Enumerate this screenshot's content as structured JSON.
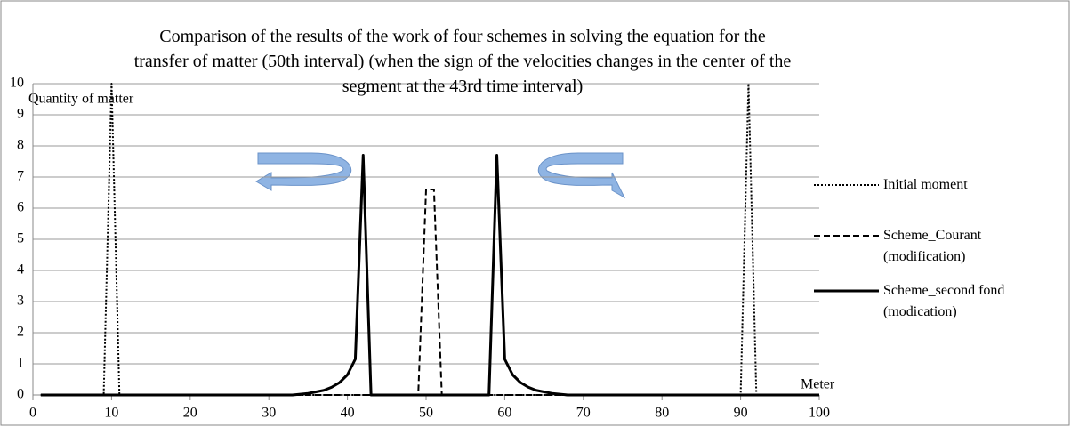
{
  "chart_data": {
    "type": "line",
    "title": "Comparison of the results of the work of four schemes in solving the equation for the transfer of matter (50th interval) (when the sign of the velocities changes in the center of the segment at the 43rd time interval)",
    "y_label": "Quantity of matter",
    "x_label": "Meter",
    "xlim": [
      0,
      100
    ],
    "xticks": [
      0,
      10,
      20,
      30,
      40,
      50,
      60,
      70,
      80,
      90,
      100
    ],
    "ylim": [
      0,
      10
    ],
    "yticks": [
      0,
      1,
      2,
      3,
      4,
      5,
      6,
      7,
      8,
      9,
      10
    ],
    "grid": true,
    "legend": "right",
    "series": [
      {
        "name": "Initial moment",
        "color": "#000000",
        "linestyle": "dotted",
        "x": [
          1,
          9,
          10,
          11,
          90,
          91,
          92,
          100
        ],
        "values": [
          0,
          0,
          10,
          0,
          0,
          10,
          0,
          0
        ]
      },
      {
        "name": "Scheme_Courant (modification)",
        "color": "#000000",
        "linestyle": "dashed",
        "x": [
          1,
          49,
          50,
          51,
          52,
          100
        ],
        "values": [
          0,
          0,
          6.6,
          6.6,
          0,
          0
        ]
      },
      {
        "name": "Scheme_second fond (modication)",
        "color": "#000000",
        "linestyle": "solid",
        "x": [
          1,
          33,
          35,
          36,
          37,
          38,
          39,
          40,
          41,
          42,
          43,
          58,
          59,
          60,
          61,
          62,
          63,
          64,
          65,
          66,
          68,
          100
        ],
        "values": [
          0,
          0,
          0.05,
          0.1,
          0.15,
          0.25,
          0.4,
          0.65,
          1.15,
          7.7,
          0,
          0,
          7.7,
          1.15,
          0.65,
          0.4,
          0.25,
          0.15,
          0.1,
          0.05,
          0,
          0
        ]
      }
    ]
  }
}
